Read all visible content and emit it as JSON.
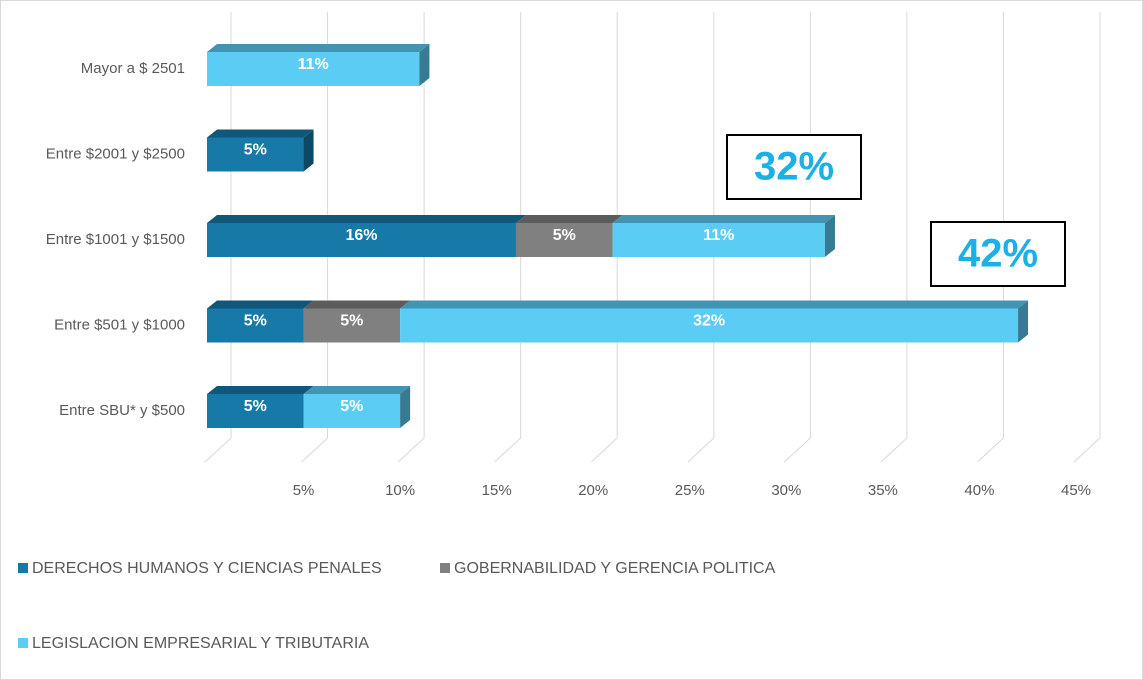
{
  "chart_data": {
    "type": "bar",
    "orientation": "horizontal",
    "stacked": true,
    "categories": [
      "Mayor a $ 2501",
      "Entre $2001 y $2500",
      "Entre $1001 y $1500",
      "Entre $501 y $1000",
      "Entre SBU* y $500"
    ],
    "series": [
      {
        "name": "DERECHOS HUMANOS Y CIENCIAS PENALES",
        "color": "#1679a8",
        "values": [
          null,
          5,
          16,
          5,
          5
        ],
        "value_labels": [
          null,
          "5%",
          "16%",
          "5%",
          "5%"
        ]
      },
      {
        "name": "GOBERNABILIDAD Y GERENCIA POLITICA",
        "color": "#808080",
        "values": [
          null,
          null,
          5,
          5,
          null
        ],
        "value_labels": [
          null,
          null,
          "5%",
          "5%",
          null
        ]
      },
      {
        "name": "LEGISLACION EMPRESARIAL Y TRIBUTARIA",
        "color": "#5bcdf5",
        "values": [
          11,
          null,
          11,
          32,
          5
        ],
        "value_labels": [
          "11%",
          null,
          "11%",
          "32%",
          "5%"
        ]
      }
    ],
    "xlim": [
      0,
      45
    ],
    "xticks": [
      {
        "value": 5,
        "label": "5%"
      },
      {
        "value": 10,
        "label": "10%"
      },
      {
        "value": 15,
        "label": "15%"
      },
      {
        "value": 20,
        "label": "20%"
      },
      {
        "value": 25,
        "label": "25%"
      },
      {
        "value": 30,
        "label": "30%"
      },
      {
        "value": 35,
        "label": "35%"
      },
      {
        "value": 40,
        "label": "40%"
      },
      {
        "value": 45,
        "label": "45%"
      }
    ],
    "grid": true,
    "annotations": [
      "32%",
      "42%"
    ]
  }
}
